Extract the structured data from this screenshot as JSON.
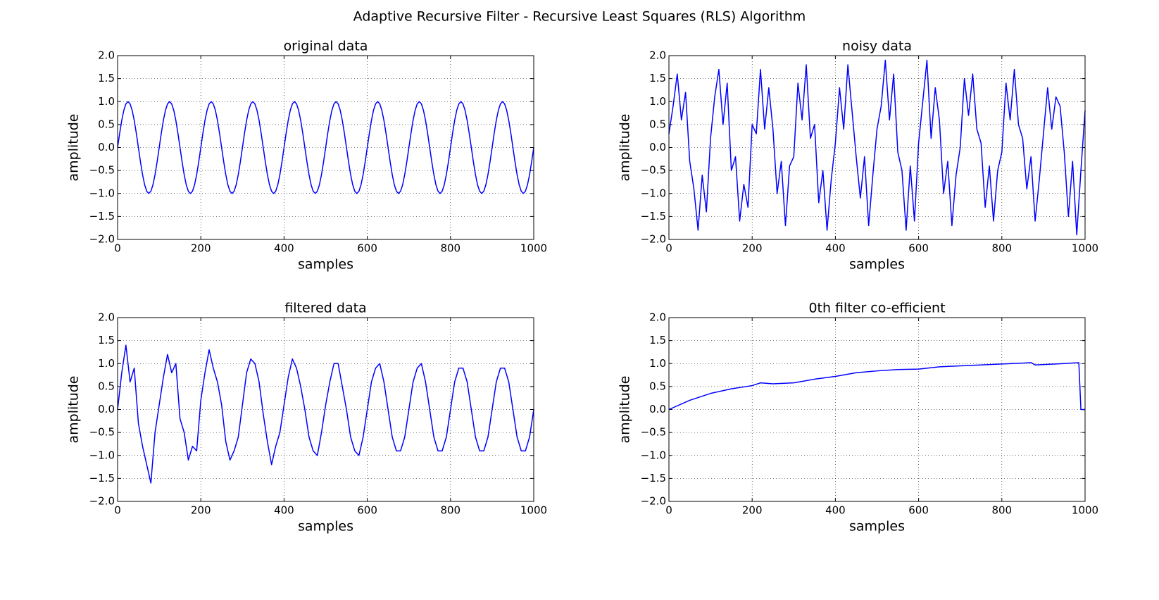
{
  "title": "Adaptive Recursive Filter - Recursive Least Squares (RLS) Algorithm",
  "chart_data": [
    {
      "type": "line",
      "title": "original data",
      "xlabel": "samples",
      "ylabel": "amplitude",
      "color": "#0000ff",
      "grid": true,
      "xlim": [
        0,
        1000
      ],
      "xticks": [
        0,
        200,
        400,
        600,
        800,
        1000
      ],
      "ylim": [
        -2,
        2
      ],
      "yticks": [
        {
          "value": -2,
          "label": "−2.0"
        },
        {
          "value": -1.5,
          "label": "−1.5"
        },
        {
          "value": -1,
          "label": "−1.0"
        },
        {
          "value": -0.5,
          "label": "−0.5"
        },
        {
          "value": 0,
          "label": "0.0"
        },
        0.5,
        {
          "value": 1,
          "label": "1.0"
        },
        1.5,
        {
          "value": 2,
          "label": "2.0"
        }
      ],
      "x": [
        0,
        5,
        10,
        15,
        20,
        25,
        30,
        35,
        40,
        45,
        50,
        55,
        60,
        65,
        70,
        75,
        80,
        85,
        90,
        95,
        100,
        105,
        110,
        115,
        120,
        125,
        130,
        135,
        140,
        145,
        150,
        155,
        160,
        165,
        170,
        175,
        180,
        185,
        190,
        195,
        200,
        205,
        210,
        215,
        220,
        225,
        230,
        235,
        240,
        245,
        250,
        255,
        260,
        265,
        270,
        275,
        280,
        285,
        290,
        295,
        300,
        305,
        310,
        315,
        320,
        325,
        330,
        335,
        340,
        345,
        350,
        355,
        360,
        365,
        370,
        375,
        380,
        385,
        390,
        395,
        400,
        405,
        410,
        415,
        420,
        425,
        430,
        435,
        440,
        445,
        450,
        455,
        460,
        465,
        470,
        475,
        480,
        485,
        490,
        495,
        500,
        505,
        510,
        515,
        520,
        525,
        530,
        535,
        540,
        545,
        550,
        555,
        560,
        565,
        570,
        575,
        580,
        585,
        590,
        595,
        600,
        605,
        610,
        615,
        620,
        625,
        630,
        635,
        640,
        645,
        650,
        655,
        660,
        665,
        670,
        675,
        680,
        685,
        690,
        695,
        700,
        705,
        710,
        715,
        720,
        725,
        730,
        735,
        740,
        745,
        750,
        755,
        760,
        765,
        770,
        775,
        780,
        785,
        790,
        795,
        800,
        805,
        810,
        815,
        820,
        825,
        830,
        835,
        840,
        845,
        850,
        855,
        860,
        865,
        870,
        875,
        880,
        885,
        890,
        895,
        900,
        905,
        910,
        915,
        920,
        925,
        930,
        935,
        940,
        945,
        950,
        955,
        960,
        965,
        970,
        975,
        980,
        985,
        990,
        995,
        1000
      ],
      "values": [
        0,
        0.31,
        0.59,
        0.81,
        0.95,
        1,
        0.95,
        0.81,
        0.59,
        0.31,
        0,
        -0.31,
        -0.59,
        -0.81,
        -0.95,
        -1,
        -0.95,
        -0.81,
        -0.59,
        -0.31,
        0,
        0.31,
        0.59,
        0.81,
        0.95,
        1,
        0.95,
        0.81,
        0.59,
        0.31,
        0,
        -0.31,
        -0.59,
        -0.81,
        -0.95,
        -1,
        -0.95,
        -0.81,
        -0.59,
        -0.31,
        0,
        0.31,
        0.59,
        0.81,
        0.95,
        1,
        0.95,
        0.81,
        0.59,
        0.31,
        0,
        -0.31,
        -0.59,
        -0.81,
        -0.95,
        -1,
        -0.95,
        -0.81,
        -0.59,
        -0.31,
        0,
        0.31,
        0.59,
        0.81,
        0.95,
        1,
        0.95,
        0.81,
        0.59,
        0.31,
        0,
        -0.31,
        -0.59,
        -0.81,
        -0.95,
        -1,
        -0.95,
        -0.81,
        -0.59,
        -0.31,
        0,
        0.31,
        0.59,
        0.81,
        0.95,
        1,
        0.95,
        0.81,
        0.59,
        0.31,
        0,
        -0.31,
        -0.59,
        -0.81,
        -0.95,
        -1,
        -0.95,
        -0.81,
        -0.59,
        -0.31,
        0,
        0.31,
        0.59,
        0.81,
        0.95,
        1,
        0.95,
        0.81,
        0.59,
        0.31,
        0,
        -0.31,
        -0.59,
        -0.81,
        -0.95,
        -1,
        -0.95,
        -0.81,
        -0.59,
        -0.31,
        0,
        0.31,
        0.59,
        0.81,
        0.95,
        1,
        0.95,
        0.81,
        0.59,
        0.31,
        0,
        -0.31,
        -0.59,
        -0.81,
        -0.95,
        -1,
        -0.95,
        -0.81,
        -0.59,
        -0.31,
        0,
        0.31,
        0.59,
        0.81,
        0.95,
        1,
        0.95,
        0.81,
        0.59,
        0.31,
        0,
        -0.31,
        -0.59,
        -0.81,
        -0.95,
        -1,
        -0.95,
        -0.81,
        -0.59,
        -0.31,
        0,
        0.31,
        0.59,
        0.81,
        0.95,
        1,
        0.95,
        0.81,
        0.59,
        0.31,
        0,
        -0.31,
        -0.59,
        -0.81,
        -0.95,
        -1,
        -0.95,
        -0.81,
        -0.59,
        -0.31,
        0,
        0.31,
        0.59,
        0.81,
        0.95,
        1,
        0.95,
        0.81,
        0.59,
        0.31,
        0,
        -0.31,
        -0.59,
        -0.81,
        -0.95,
        -1,
        -0.95,
        -0.81,
        -0.59,
        -0.31,
        0
      ]
    },
    {
      "type": "line",
      "title": "noisy data",
      "xlabel": "samples",
      "ylabel": "amplitude",
      "color": "#0000ff",
      "grid": true,
      "xlim": [
        0,
        1000
      ],
      "xticks": [
        0,
        200,
        400,
        600,
        800,
        1000
      ],
      "ylim": [
        -2,
        2
      ],
      "yticks": [
        {
          "value": -2,
          "label": "−2.0"
        },
        {
          "value": -1.5,
          "label": "−1.5"
        },
        {
          "value": -1,
          "label": "−1.0"
        },
        {
          "value": -0.5,
          "label": "−0.5"
        },
        {
          "value": 0,
          "label": "0.0"
        },
        0.5,
        {
          "value": 1,
          "label": "1.0"
        },
        1.5,
        {
          "value": 2,
          "label": "2.0"
        }
      ],
      "x": [
        0,
        10,
        20,
        30,
        40,
        50,
        60,
        70,
        80,
        90,
        100,
        110,
        120,
        130,
        140,
        150,
        160,
        170,
        180,
        190,
        200,
        210,
        220,
        230,
        240,
        250,
        260,
        270,
        280,
        290,
        300,
        310,
        320,
        330,
        340,
        350,
        360,
        370,
        380,
        390,
        400,
        410,
        420,
        430,
        440,
        450,
        460,
        470,
        480,
        490,
        500,
        510,
        520,
        530,
        540,
        550,
        560,
        570,
        580,
        590,
        600,
        610,
        620,
        630,
        640,
        650,
        660,
        670,
        680,
        690,
        700,
        710,
        720,
        730,
        740,
        750,
        760,
        770,
        780,
        790,
        800,
        810,
        820,
        830,
        840,
        850,
        860,
        870,
        880,
        890,
        900,
        910,
        920,
        930,
        940,
        950,
        960,
        970,
        980,
        990,
        1000
      ],
      "values": [
        0.3,
        0.9,
        1.6,
        0.6,
        1.2,
        -0.3,
        -0.9,
        -1.8,
        -0.6,
        -1.4,
        0.2,
        1.1,
        1.7,
        0.5,
        1.4,
        -0.5,
        -0.2,
        -1.6,
        -0.8,
        -1.3,
        0.5,
        0.3,
        1.7,
        0.4,
        1.3,
        0.4,
        -1.0,
        -0.3,
        -1.7,
        -0.4,
        -0.2,
        1.4,
        0.6,
        1.8,
        0.2,
        0.5,
        -1.2,
        -0.5,
        -1.8,
        -0.7,
        0.1,
        1.3,
        0.4,
        1.8,
        0.8,
        -0.2,
        -1.1,
        -0.2,
        -1.7,
        -0.6,
        0.4,
        0.9,
        1.9,
        0.6,
        1.6,
        -0.1,
        -0.5,
        -1.8,
        -0.4,
        -1.6,
        0.1,
        1.0,
        1.9,
        0.2,
        1.3,
        0.6,
        -1.0,
        -0.3,
        -1.7,
        -0.6,
        0.0,
        1.5,
        0.7,
        1.6,
        0.4,
        0.1,
        -1.3,
        -0.4,
        -1.6,
        -0.5,
        -0.1,
        1.4,
        0.6,
        1.7,
        0.5,
        0.2,
        -0.9,
        -0.2,
        -1.6,
        -0.7,
        0.3,
        1.3,
        0.4,
        1.1,
        0.9,
        -0.1,
        -1.5,
        -0.3,
        -1.9,
        -0.5,
        0.8
      ]
    },
    {
      "type": "line",
      "title": "filtered data",
      "xlabel": "samples",
      "ylabel": "amplitude",
      "color": "#0000ff",
      "grid": true,
      "xlim": [
        0,
        1000
      ],
      "xticks": [
        0,
        200,
        400,
        600,
        800,
        1000
      ],
      "ylim": [
        -2,
        2
      ],
      "yticks": [
        {
          "value": -2,
          "label": "−2.0"
        },
        {
          "value": -1.5,
          "label": "−1.5"
        },
        {
          "value": -1,
          "label": "−1.0"
        },
        {
          "value": -0.5,
          "label": "−0.5"
        },
        {
          "value": 0,
          "label": "0.0"
        },
        0.5,
        {
          "value": 1,
          "label": "1.0"
        },
        1.5,
        {
          "value": 2,
          "label": "2.0"
        }
      ],
      "x": [
        0,
        10,
        20,
        30,
        40,
        50,
        60,
        70,
        80,
        90,
        100,
        110,
        120,
        130,
        140,
        150,
        160,
        170,
        180,
        190,
        200,
        210,
        220,
        230,
        240,
        250,
        260,
        270,
        280,
        290,
        300,
        310,
        320,
        330,
        340,
        350,
        360,
        370,
        380,
        390,
        400,
        410,
        420,
        430,
        440,
        450,
        460,
        470,
        480,
        490,
        500,
        510,
        520,
        530,
        540,
        550,
        560,
        570,
        580,
        590,
        600,
        610,
        620,
        630,
        640,
        650,
        660,
        670,
        680,
        690,
        700,
        710,
        720,
        730,
        740,
        750,
        760,
        770,
        780,
        790,
        800,
        810,
        820,
        830,
        840,
        850,
        860,
        870,
        880,
        890,
        900,
        910,
        920,
        930,
        940,
        950,
        960,
        970,
        980,
        990,
        1000
      ],
      "values": [
        0.0,
        0.8,
        1.4,
        0.6,
        0.9,
        -0.3,
        -0.8,
        -1.2,
        -1.6,
        -0.5,
        0.1,
        0.7,
        1.2,
        0.8,
        1.0,
        -0.2,
        -0.5,
        -1.1,
        -0.8,
        -0.9,
        0.2,
        0.8,
        1.3,
        0.9,
        0.6,
        0.1,
        -0.7,
        -1.1,
        -0.9,
        -0.6,
        0.1,
        0.8,
        1.1,
        1.0,
        0.6,
        -0.1,
        -0.7,
        -1.2,
        -0.8,
        -0.5,
        0.1,
        0.7,
        1.1,
        0.9,
        0.5,
        0.0,
        -0.6,
        -0.9,
        -1.0,
        -0.5,
        0.1,
        0.6,
        1.0,
        1.0,
        0.5,
        0.0,
        -0.6,
        -0.9,
        -1.0,
        -0.6,
        0.0,
        0.6,
        0.9,
        1.0,
        0.6,
        0.0,
        -0.6,
        -0.9,
        -0.9,
        -0.6,
        0.0,
        0.6,
        0.9,
        1.0,
        0.6,
        0.0,
        -0.6,
        -0.9,
        -0.9,
        -0.6,
        0.0,
        0.6,
        0.9,
        0.9,
        0.6,
        0.0,
        -0.6,
        -0.9,
        -0.9,
        -0.6,
        0.0,
        0.6,
        0.9,
        0.9,
        0.6,
        0.0,
        -0.6,
        -0.9,
        -0.9,
        -0.6,
        0.0
      ]
    },
    {
      "type": "line",
      "title": "0th filter co-efficient",
      "xlabel": "samples",
      "ylabel": "amplitude",
      "color": "#0000ff",
      "grid": true,
      "xlim": [
        0,
        1000
      ],
      "xticks": [
        0,
        200,
        400,
        600,
        800,
        1000
      ],
      "ylim": [
        -2,
        2
      ],
      "yticks": [
        {
          "value": -2,
          "label": "−2.0"
        },
        {
          "value": -1.5,
          "label": "−1.5"
        },
        {
          "value": -1,
          "label": "−1.0"
        },
        {
          "value": -0.5,
          "label": "−0.5"
        },
        {
          "value": 0,
          "label": "0.0"
        },
        0.5,
        {
          "value": 1,
          "label": "1.0"
        },
        1.5,
        {
          "value": 2,
          "label": "2.0"
        }
      ],
      "x": [
        0,
        50,
        100,
        150,
        200,
        220,
        250,
        300,
        350,
        400,
        450,
        500,
        550,
        600,
        650,
        700,
        750,
        800,
        850,
        870,
        880,
        950,
        985,
        990,
        1000
      ],
      "values": [
        0,
        0.2,
        0.35,
        0.45,
        0.52,
        0.58,
        0.56,
        0.58,
        0.66,
        0.72,
        0.8,
        0.84,
        0.87,
        0.88,
        0.93,
        0.95,
        0.97,
        0.99,
        1.01,
        1.02,
        0.97,
        1.0,
        1.02,
        0,
        0
      ]
    }
  ]
}
